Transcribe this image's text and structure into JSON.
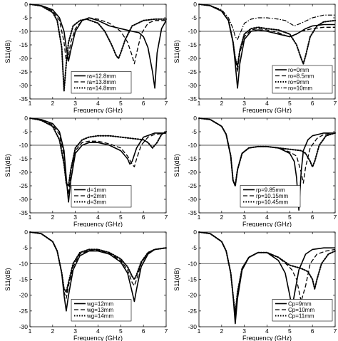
{
  "figure": {
    "background": "#ffffff",
    "line_color": "#000000",
    "ref_line_color": "#555555"
  },
  "chart_data": [
    {
      "type": "line",
      "title": "",
      "xlabel": "",
      "ylabel": "S11(dB)",
      "xlim": [
        1,
        7
      ],
      "ylim": [
        -35,
        0
      ],
      "xticks": [
        1,
        2,
        3,
        4,
        5,
        6,
        7
      ],
      "yticks": [
        0,
        -5,
        -10,
        -15,
        -20,
        -25,
        -30,
        -35
      ],
      "ref_line": -10,
      "legend_position": "bottom-center",
      "series": [
        {
          "name": "ra=12.8mm",
          "style": "solid",
          "x": [
            1,
            1.5,
            2,
            2.3,
            2.5,
            2.6,
            2.7,
            2.8,
            3,
            3.3,
            3.6,
            4,
            4.5,
            5,
            5.5,
            5.8,
            6,
            6.2,
            6.4,
            6.5,
            6.6,
            6.8,
            7
          ],
          "y": [
            0,
            -0.5,
            -2,
            -5,
            -10,
            -16,
            -21,
            -17,
            -10,
            -6,
            -5,
            -6,
            -8,
            -9,
            -10,
            -10.5,
            -12,
            -16,
            -25,
            -31,
            -18,
            -9,
            -6
          ]
        },
        {
          "name": "ra=13.8mm",
          "style": "dashed",
          "x": [
            1,
            1.5,
            2,
            2.3,
            2.5,
            2.6,
            2.7,
            2.8,
            3,
            3.3,
            3.6,
            4,
            4.5,
            5,
            5.3,
            5.5,
            5.6,
            5.7,
            5.9,
            6.2,
            6.5,
            7
          ],
          "y": [
            0,
            -0.5,
            -2.5,
            -6,
            -14,
            -21,
            -19,
            -14,
            -9,
            -6,
            -5,
            -5.5,
            -7,
            -10,
            -14,
            -19,
            -22,
            -18,
            -11,
            -7,
            -6,
            -6
          ]
        },
        {
          "name": "ra=14.8mm",
          "style": "dotted",
          "x": [
            1,
            1.5,
            2,
            2.2,
            2.4,
            2.5,
            2.6,
            2.7,
            2.9,
            3.2,
            3.5,
            4,
            4.3,
            4.6,
            4.8,
            4.9,
            5.0,
            5.2,
            5.5,
            6,
            6.5,
            7
          ],
          "y": [
            0,
            -0.6,
            -3,
            -6,
            -16,
            -32,
            -22,
            -14,
            -8,
            -6,
            -5.5,
            -7,
            -10,
            -15,
            -19,
            -20,
            -18,
            -13,
            -8,
            -6,
            -5.5,
            -5.5
          ]
        }
      ],
      "x_grid": false,
      "y_grid": false
    },
    {
      "type": "line",
      "title": "",
      "xlabel": "",
      "ylabel": "S11(dB)",
      "xlim": [
        1,
        7
      ],
      "ylim": [
        -35,
        0
      ],
      "xticks": [
        1,
        2,
        3,
        4,
        5,
        6,
        7
      ],
      "yticks": [
        0,
        -5,
        -10,
        -15,
        -20,
        -25,
        -30,
        -35
      ],
      "ref_line": -10,
      "legend_position": "bottom-right",
      "series": [
        {
          "name": "ro=0mm",
          "style": "solid",
          "x": [
            1,
            1.5,
            2,
            2.3,
            2.5,
            2.6,
            2.7,
            2.8,
            3,
            3.3,
            3.6,
            4,
            4.5,
            5,
            5.3,
            5.7,
            6,
            6.5,
            7
          ],
          "y": [
            0,
            -0.5,
            -2.5,
            -6,
            -14,
            -22,
            -31,
            -22,
            -13,
            -10,
            -9.5,
            -10,
            -11,
            -12,
            -11,
            -9,
            -8,
            -7.5,
            -7.5
          ]
        },
        {
          "name": "ro=8.5mm",
          "style": "dashed",
          "x": [
            1,
            1.5,
            2,
            2.3,
            2.5,
            2.6,
            2.7,
            2.8,
            3,
            3.3,
            3.6,
            4,
            4.5,
            4.8,
            5,
            5.2,
            5.5,
            6,
            6.5,
            7
          ],
          "y": [
            0,
            -0.5,
            -2.5,
            -6,
            -14,
            -20,
            -25,
            -18,
            -12,
            -9.5,
            -9,
            -9.5,
            -10.5,
            -11.5,
            -12,
            -11.5,
            -10,
            -9,
            -8.5,
            -8.5
          ]
        },
        {
          "name": "ro=9mm",
          "style": "dotted",
          "x": [
            1,
            1.5,
            2,
            2.3,
            2.5,
            2.6,
            2.7,
            2.8,
            3,
            3.3,
            3.6,
            4,
            4.5,
            5,
            5.3,
            5.5,
            5.6,
            5.7,
            5.9,
            6.2,
            6.5,
            7
          ],
          "y": [
            0,
            -0.5,
            -2.5,
            -6,
            -14,
            -20,
            -23,
            -17,
            -11,
            -9,
            -8.5,
            -9,
            -9.5,
            -11,
            -15,
            -20,
            -22,
            -19,
            -12,
            -8,
            -6.5,
            -6
          ]
        },
        {
          "name": "ro=10mm",
          "style": "dashdot",
          "x": [
            1,
            1.5,
            2,
            2.3,
            2.5,
            2.6,
            2.7,
            2.8,
            3,
            3.3,
            3.6,
            4,
            4.5,
            4.8,
            5,
            5.2,
            5.5,
            6,
            6.5,
            7
          ],
          "y": [
            0,
            -0.5,
            -2,
            -5,
            -9,
            -12,
            -13,
            -11,
            -7,
            -5.5,
            -5,
            -5,
            -5.5,
            -6,
            -7,
            -8,
            -7,
            -5,
            -4,
            -4
          ]
        }
      ],
      "x_grid": false,
      "y_grid": false
    },
    {
      "type": "line",
      "title": "",
      "xlabel": "",
      "ylabel": "S11(dB)",
      "xlim": [
        1,
        7
      ],
      "ylim": [
        -35,
        0
      ],
      "xticks": [
        1,
        2,
        3,
        4,
        5,
        6,
        7
      ],
      "yticks": [
        0,
        -5,
        -10,
        -15,
        -20,
        -25,
        -30,
        -35
      ],
      "ref_line": -10,
      "legend_position": "bottom-center",
      "series": [
        {
          "name": "d=1mm",
          "style": "solid",
          "x": [
            1,
            1.5,
            2,
            2.3,
            2.5,
            2.6,
            2.7,
            2.8,
            3,
            3.3,
            3.6,
            4,
            4.5,
            5,
            5.3,
            5.4,
            5.5,
            5.7,
            6,
            6.5,
            7
          ],
          "y": [
            0,
            -0.5,
            -2,
            -5,
            -12,
            -22,
            -31,
            -23,
            -13,
            -10,
            -9,
            -9,
            -10,
            -12,
            -15,
            -17,
            -16,
            -11,
            -7,
            -5.5,
            -5.5
          ]
        },
        {
          "name": "d=2mm",
          "style": "dashed",
          "x": [
            1,
            1.5,
            2,
            2.3,
            2.5,
            2.6,
            2.7,
            2.8,
            3,
            3.3,
            3.6,
            4,
            4.5,
            5,
            5.3,
            5.5,
            5.6,
            5.7,
            5.9,
            6.2,
            6.5,
            7
          ],
          "y": [
            0,
            -0.6,
            -2.5,
            -6,
            -14,
            -24,
            -28,
            -20,
            -12,
            -9,
            -8.5,
            -8.5,
            -9.5,
            -11,
            -14,
            -17,
            -18,
            -15,
            -10,
            -7,
            -6,
            -5.5
          ]
        },
        {
          "name": "d=3mm",
          "style": "dotted",
          "x": [
            1,
            1.5,
            2,
            2.3,
            2.5,
            2.6,
            2.7,
            2.8,
            3,
            3.3,
            3.6,
            4,
            4.5,
            5,
            5.5,
            6,
            6.2,
            6.4,
            6.6,
            6.8,
            7
          ],
          "y": [
            0,
            -0.8,
            -3,
            -8,
            -17,
            -24,
            -25,
            -19,
            -11,
            -8,
            -7,
            -6.5,
            -6.5,
            -7,
            -7.5,
            -8,
            -9,
            -11,
            -9,
            -6,
            -5
          ]
        }
      ],
      "x_grid": false,
      "y_grid": false
    },
    {
      "type": "line",
      "title": "",
      "xlabel": "",
      "ylabel": "S11(dB)",
      "xlim": [
        1,
        7
      ],
      "ylim": [
        -35,
        0
      ],
      "xticks": [
        1,
        2,
        3,
        4,
        5,
        6,
        7
      ],
      "yticks": [
        0,
        -5,
        -10,
        -15,
        -20,
        -25,
        -30,
        -35
      ],
      "ref_line": -10,
      "legend_position": "bottom-center",
      "series": [
        {
          "name": "rp=9.85mm",
          "style": "solid",
          "x": [
            1,
            1.5,
            2,
            2.2,
            2.4,
            2.5,
            2.6,
            2.7,
            2.9,
            3.2,
            3.6,
            4,
            4.5,
            5,
            5.2,
            5.3,
            5.4,
            5.5,
            5.6,
            5.8,
            6,
            6.5,
            7
          ],
          "y": [
            0,
            -0.5,
            -3,
            -6,
            -14,
            -23,
            -25,
            -19,
            -13,
            -11,
            -10.5,
            -10.5,
            -11,
            -13,
            -16,
            -22,
            -34,
            -20,
            -12,
            -8,
            -6.5,
            -5.5,
            -5.5
          ]
        },
        {
          "name": "rp=10.15mm",
          "style": "dashed",
          "x": [
            1,
            1.5,
            2,
            2.2,
            2.4,
            2.5,
            2.6,
            2.7,
            2.9,
            3.2,
            3.6,
            4,
            4.5,
            5,
            5.3,
            5.5,
            5.6,
            5.7,
            5.9,
            6.2,
            6.5,
            7
          ],
          "y": [
            0,
            -0.5,
            -3,
            -6,
            -14,
            -23,
            -25,
            -19,
            -13,
            -11,
            -10.5,
            -10.5,
            -11,
            -12.5,
            -14,
            -20,
            -24,
            -18,
            -11,
            -7.5,
            -6,
            -5.5
          ]
        },
        {
          "name": "rp=10.45mm",
          "style": "dotted",
          "x": [
            1,
            1.5,
            2,
            2.2,
            2.4,
            2.5,
            2.6,
            2.7,
            2.9,
            3.2,
            3.6,
            4,
            4.5,
            5,
            5.5,
            5.7,
            5.9,
            6,
            6.1,
            6.3,
            6.6,
            7
          ],
          "y": [
            0,
            -0.5,
            -3,
            -6,
            -14,
            -23,
            -25,
            -19,
            -13,
            -11,
            -10.5,
            -10.5,
            -11,
            -11.5,
            -12,
            -13,
            -16,
            -18,
            -16,
            -10,
            -6.5,
            -5.5
          ]
        }
      ],
      "x_grid": false,
      "y_grid": false
    },
    {
      "type": "line",
      "title": "",
      "xlabel": "",
      "ylabel": "S11(dB)",
      "xlim": [
        1,
        7
      ],
      "ylim": [
        -30,
        0
      ],
      "xticks": [
        1,
        2,
        3,
        4,
        5,
        6,
        7
      ],
      "yticks": [
        0,
        -5,
        -10,
        -15,
        -20,
        -25,
        -30
      ],
      "ref_line": -10,
      "legend_position": "bottom-center",
      "series": [
        {
          "name": "wg=12mm",
          "style": "solid",
          "x": [
            1,
            1.5,
            2,
            2.2,
            2.4,
            2.5,
            2.6,
            2.7,
            2.9,
            3.2,
            3.6,
            4,
            4.5,
            5,
            5.3,
            5.5,
            5.6,
            5.7,
            5.9,
            6.2,
            6.5,
            7
          ],
          "y": [
            0,
            -0.5,
            -3,
            -6,
            -13,
            -20,
            -25,
            -20,
            -12,
            -7.5,
            -6,
            -6,
            -7,
            -9.5,
            -13,
            -19,
            -22,
            -18,
            -11,
            -7,
            -5.5,
            -5
          ]
        },
        {
          "name": "wg=13mm",
          "style": "dashed",
          "x": [
            1,
            1.5,
            2,
            2.2,
            2.4,
            2.5,
            2.6,
            2.7,
            2.9,
            3.2,
            3.6,
            4,
            4.5,
            5,
            5.3,
            5.5,
            5.6,
            5.7,
            5.9,
            6.2,
            6.5,
            7
          ],
          "y": [
            0,
            -0.5,
            -3,
            -6,
            -13,
            -19,
            -21,
            -17,
            -11,
            -7,
            -5.8,
            -5.8,
            -6.8,
            -9,
            -12,
            -16,
            -17,
            -15,
            -10,
            -6.5,
            -5.5,
            -5
          ]
        },
        {
          "name": "wg=14mm",
          "style": "dotted",
          "x": [
            1,
            1.5,
            2,
            2.2,
            2.4,
            2.5,
            2.6,
            2.7,
            2.9,
            3.2,
            3.6,
            4,
            4.5,
            5,
            5.3,
            5.5,
            5.6,
            5.7,
            5.9,
            6.2,
            6.5,
            7
          ],
          "y": [
            0,
            -0.5,
            -3,
            -6,
            -13,
            -18,
            -19,
            -16,
            -10,
            -6.5,
            -5.5,
            -5.5,
            -6.5,
            -8.5,
            -11,
            -14,
            -15,
            -13.5,
            -9.5,
            -6.5,
            -5.5,
            -5
          ]
        }
      ],
      "x_grid": false,
      "y_grid": false
    },
    {
      "type": "line",
      "title": "",
      "xlabel": "",
      "ylabel": "S11(dB)",
      "xlim": [
        1,
        7
      ],
      "ylim": [
        -30,
        0
      ],
      "xticks": [
        1,
        2,
        3,
        4,
        5,
        6,
        7
      ],
      "yticks": [
        0,
        -5,
        -10,
        -15,
        -20,
        -25,
        -30
      ],
      "ref_line": -10,
      "legend_position": "bottom-right",
      "series": [
        {
          "name": "Cp=9mm",
          "style": "solid",
          "x": [
            1,
            1.5,
            2,
            2.2,
            2.4,
            2.5,
            2.6,
            2.7,
            2.9,
            3.2,
            3.6,
            4,
            4.5,
            4.8,
            5,
            5.1,
            5.2,
            5.4,
            5.7,
            6,
            6.5,
            7
          ],
          "y": [
            0,
            -0.5,
            -3,
            -6,
            -13,
            -20,
            -29,
            -21,
            -12,
            -8,
            -6.5,
            -6.5,
            -9,
            -13,
            -20,
            -24,
            -20,
            -12,
            -7,
            -5.5,
            -5,
            -5
          ]
        },
        {
          "name": "Cp=10mm",
          "style": "dashed",
          "x": [
            1,
            1.5,
            2,
            2.2,
            2.4,
            2.5,
            2.6,
            2.7,
            2.9,
            3.2,
            3.6,
            4,
            4.5,
            4.9,
            5.1,
            5.3,
            5.5,
            5.7,
            5.9,
            6.2,
            6.6,
            7
          ],
          "y": [
            0,
            -0.5,
            -3,
            -6,
            -13,
            -20,
            -27,
            -20,
            -12,
            -8,
            -6.5,
            -6.5,
            -8,
            -10.5,
            -12,
            -15,
            -22,
            -17,
            -10,
            -7,
            -6,
            -5.5
          ]
        },
        {
          "name": "Cp=11mm",
          "style": "dotted",
          "x": [
            1,
            1.5,
            2,
            2.2,
            2.4,
            2.5,
            2.6,
            2.7,
            2.9,
            3.2,
            3.6,
            4,
            4.5,
            5,
            5.5,
            5.8,
            6,
            6.1,
            6.2,
            6.4,
            6.7,
            7
          ],
          "y": [
            0,
            -0.5,
            -3,
            -6,
            -13,
            -20,
            -26,
            -19,
            -11.5,
            -8,
            -6.5,
            -6.5,
            -8,
            -10.5,
            -11.5,
            -12.5,
            -15,
            -18,
            -15,
            -10,
            -7,
            -6
          ]
        }
      ],
      "x_grid": false,
      "y_grid": false
    }
  ],
  "xlabel_text": "Frequency (GHz)"
}
